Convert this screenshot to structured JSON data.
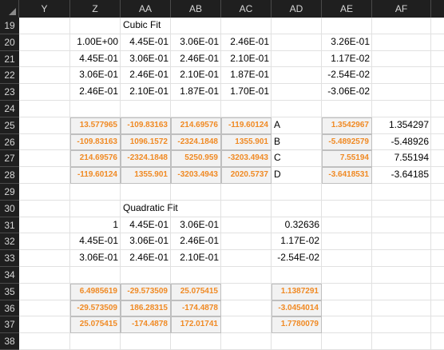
{
  "columns": [
    "Y",
    "Z",
    "AA",
    "AB",
    "AC",
    "AD",
    "AE",
    "AF"
  ],
  "rows": [
    "19",
    "20",
    "21",
    "22",
    "23",
    "24",
    "25",
    "26",
    "27",
    "28",
    "29",
    "30",
    "31",
    "32",
    "33",
    "34",
    "35",
    "36",
    "37",
    "38"
  ],
  "labels": {
    "cubic_title": "Cubic Fit",
    "quadratic_title": "Quadratic Fit"
  },
  "cubic_matrix": [
    [
      "1.00E+00",
      "4.45E-01",
      "3.06E-01",
      "2.46E-01"
    ],
    [
      "4.45E-01",
      "3.06E-01",
      "2.46E-01",
      "2.10E-01"
    ],
    [
      "3.06E-01",
      "2.46E-01",
      "2.10E-01",
      "1.87E-01"
    ],
    [
      "2.46E-01",
      "2.10E-01",
      "1.87E-01",
      "1.70E-01"
    ]
  ],
  "cubic_rhs": [
    "3.26E-01",
    "1.17E-02",
    "-2.54E-02",
    "-3.06E-02"
  ],
  "cubic_inverse": [
    [
      "13.577965",
      "-109.83163",
      "214.69576",
      "-119.60124"
    ],
    [
      "-109.83163",
      "1096.1572",
      "-2324.1848",
      "1355.901"
    ],
    [
      "214.69576",
      "-2324.1848",
      "5250.959",
      "-3203.4943"
    ],
    [
      "-119.60124",
      "1355.901",
      "-3203.4943",
      "2020.5737"
    ]
  ],
  "coef_letters": [
    "A",
    "B",
    "C",
    "D"
  ],
  "cubic_coef_calc": [
    "1.3542967",
    "-5.4892579",
    "7.55194",
    "-3.6418531"
  ],
  "cubic_coef": [
    "1.354297",
    "-5.48926",
    "7.55194",
    "-3.64185"
  ],
  "quad_matrix": [
    [
      "1",
      "4.45E-01",
      "3.06E-01"
    ],
    [
      "4.45E-01",
      "3.06E-01",
      "2.46E-01"
    ],
    [
      "3.06E-01",
      "2.46E-01",
      "2.10E-01"
    ]
  ],
  "quad_rhs": [
    "0.32636",
    "1.17E-02",
    "-2.54E-02"
  ],
  "quad_inverse": [
    [
      "6.4985619",
      "-29.573509",
      "25.075415"
    ],
    [
      "-29.573509",
      "186.28315",
      "-174.4878"
    ],
    [
      "25.075415",
      "-174.4878",
      "172.01741"
    ]
  ],
  "quad_coef_calc": [
    "1.1387291",
    "-3.0454014",
    "1.7780079"
  ]
}
